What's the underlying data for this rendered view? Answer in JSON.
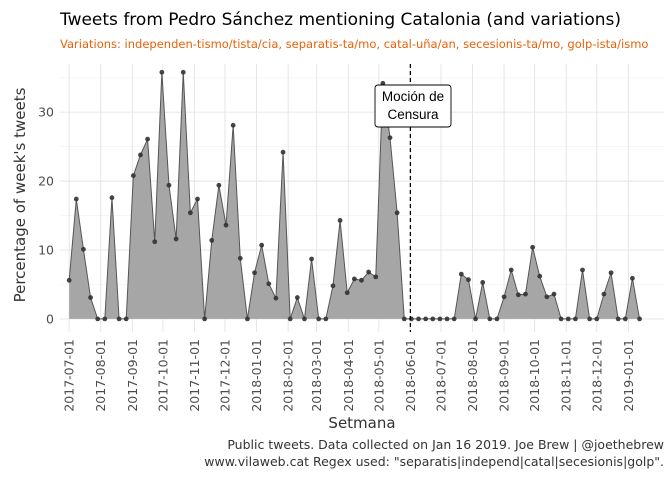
{
  "chart_data": {
    "type": "area",
    "title": "Tweets from Pedro Sánchez mentioning Catalonia (and variations)",
    "subtitle": "Variations: independen-tismo/tista/cia, separatis-ta/mo, catal-uña/an, secesionis-ta/mo, golp-ista/ismo",
    "xlabel": "Setmana",
    "ylabel": "Percentage of week's tweets",
    "caption_lines": [
      "Public tweets. Data collected on Jan 16 2019. Joe Brew | @joethebrew",
      "www.vilaweb.cat Regex used: \"separatis|independ|catal|secesionis|golp\"."
    ],
    "x_ticks": [
      "2017-07-01",
      "2017-08-01",
      "2017-09-01",
      "2017-10-01",
      "2017-11-01",
      "2017-12-01",
      "2018-01-01",
      "2018-02-01",
      "2018-03-01",
      "2018-04-01",
      "2018-05-01",
      "2018-06-01",
      "2018-07-01",
      "2018-08-01",
      "2018-09-01",
      "2018-10-01",
      "2018-11-01",
      "2018-12-01",
      "2019-01-01"
    ],
    "y_ticks": [
      0,
      10,
      20,
      30
    ],
    "ylim": [
      0,
      37
    ],
    "x_start": "2017-07-01",
    "week_step_days": 7,
    "values": [
      5.6,
      17.4,
      10.1,
      3.1,
      0,
      0,
      17.6,
      0,
      0,
      20.8,
      23.8,
      26.1,
      11.2,
      35.8,
      19.4,
      11.6,
      35.8,
      15.4,
      17.4,
      0,
      11.4,
      19.4,
      13.6,
      28.1,
      8.8,
      0,
      6.7,
      10.7,
      5.1,
      3,
      24.2,
      0,
      3.1,
      0,
      8.7,
      0,
      0,
      4.8,
      14.3,
      3.8,
      5.8,
      5.6,
      6.8,
      6.1,
      34.2,
      26.3,
      15.4,
      0,
      0,
      0,
      0,
      0,
      0,
      0,
      0,
      6.5,
      5.7,
      0,
      5.3,
      0,
      0,
      3.2,
      7.1,
      3.5,
      3.6,
      10.4,
      6.2,
      3.2,
      3.6,
      0,
      0,
      0,
      7.1,
      0,
      0,
      3.6,
      6.7,
      0,
      0,
      5.9,
      0
    ],
    "annotation": {
      "lines": [
        "Moción de",
        "Censura"
      ],
      "date": "2018-06-01"
    },
    "grid": true,
    "legend": "none",
    "colors": {
      "fill": "#a6a6a6",
      "line": "#555555",
      "point": "#333333",
      "vline": "#000000",
      "subtitle": "#e8610a"
    }
  }
}
